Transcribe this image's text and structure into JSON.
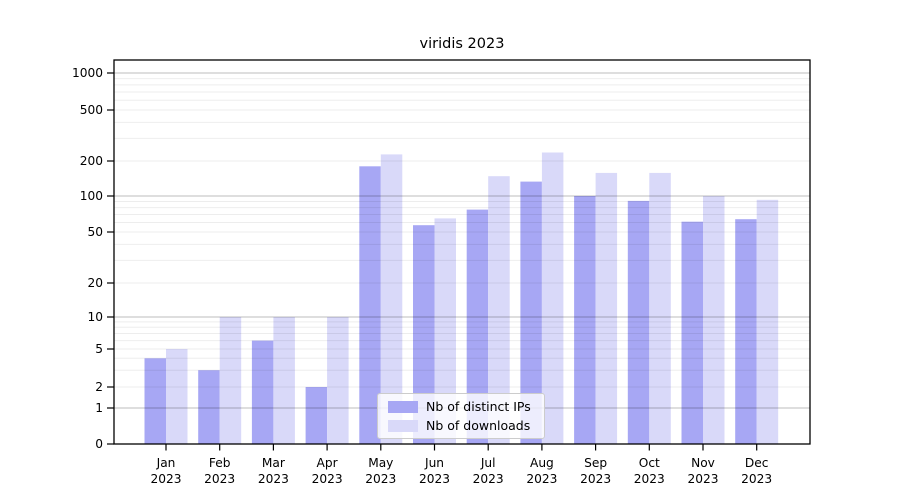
{
  "chart_data": {
    "type": "bar",
    "title": "viridis 2023",
    "year": "2023",
    "months": [
      "Jan",
      "Feb",
      "Mar",
      "Apr",
      "May",
      "Jun",
      "Jul",
      "Aug",
      "Sep",
      "Oct",
      "Nov",
      "Dec"
    ],
    "categories": [
      "Jan 2023",
      "Feb 2023",
      "Mar 2023",
      "Apr 2023",
      "May 2023",
      "Jun 2023",
      "Jul 2023",
      "Aug 2023",
      "Sep 2023",
      "Oct 2023",
      "Nov 2023",
      "Dec 2023"
    ],
    "series": [
      {
        "name": "Nb of distinct IPs",
        "color": "#a7a7f4",
        "values": [
          4,
          3,
          6,
          2,
          180,
          57,
          77,
          133,
          100,
          91,
          61,
          64
        ]
      },
      {
        "name": "Nb of downloads",
        "color": "#d9d9f9",
        "values": [
          5,
          10,
          10,
          10,
          225,
          65,
          148,
          233,
          158,
          158,
          100,
          93
        ]
      }
    ],
    "y_ticks": [
      0,
      1,
      2,
      5,
      10,
      20,
      50,
      100,
      200,
      500,
      1000
    ],
    "y_scale": "symlog",
    "ylim": [
      0,
      1300
    ],
    "grid": "both",
    "legend_position": "lower-center-inside",
    "colors": {
      "spine": "#000000",
      "tick_label": "#000000",
      "major_grid": "rgba(0,0,0,0.26)",
      "minor_grid": "rgba(0,0,0,0.07)"
    }
  }
}
